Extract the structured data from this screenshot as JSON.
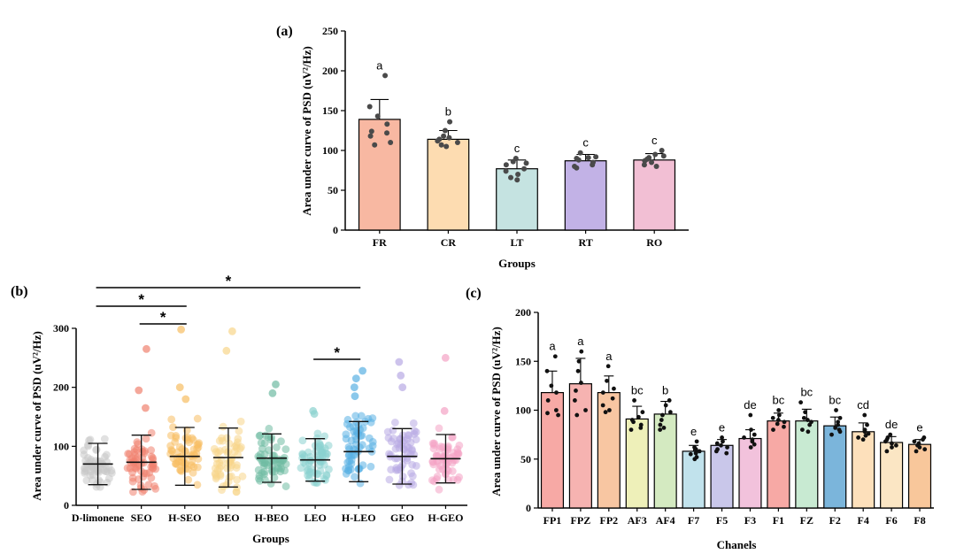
{
  "chart_data": [
    {
      "panel": "(a)",
      "type": "bar",
      "xlabel": "Groups",
      "ylabel": "Area under curve of PSD (uV²/Hz)",
      "ylim": [
        0,
        250
      ],
      "yticks": [
        0,
        50,
        100,
        150,
        200,
        250
      ],
      "categories": [
        "FR",
        "CR",
        "LT",
        "RT",
        "RO"
      ],
      "values": [
        139,
        114,
        77,
        87,
        88
      ],
      "sd": [
        25,
        11,
        11,
        8,
        8
      ],
      "letters": [
        "a",
        "b",
        "c",
        "c",
        "c"
      ],
      "colors": [
        "#f8b8a2",
        "#fddcb1",
        "#c5e3e1",
        "#c2b2e6",
        "#f2bfd4"
      ],
      "points": [
        [
          194,
          155,
          143,
          133,
          124,
          122,
          118,
          110,
          107
        ],
        [
          136,
          125,
          118,
          116,
          114,
          112,
          110,
          107,
          105
        ],
        [
          90,
          86,
          84,
          82,
          77,
          74,
          70,
          66,
          63
        ],
        [
          97,
          92,
          91,
          90,
          88,
          85,
          82,
          80,
          78
        ],
        [
          100,
          95,
          93,
          91,
          89,
          87,
          85,
          82,
          80
        ]
      ]
    },
    {
      "panel": "(b)",
      "type": "scatter",
      "xlabel": "Groups",
      "ylabel": "Area under curve of PSD (uV²/Hz)",
      "ylim": [
        0,
        300
      ],
      "yticks": [
        0,
        100,
        200,
        300
      ],
      "categories": [
        "D-limonene",
        "SEO",
        "H-SEO",
        "BEO",
        "H-BEO",
        "LEO",
        "H-LEO",
        "GEO",
        "H-GEO"
      ],
      "mean": [
        70,
        73,
        83,
        81,
        80,
        77,
        91,
        83,
        79
      ],
      "sd": [
        35,
        46,
        49,
        50,
        41,
        36,
        51,
        47,
        41
      ],
      "max": [
        178,
        265,
        298,
        295,
        205,
        160,
        228,
        243,
        250
      ],
      "outliers": [
        [],
        [
          265,
          195,
          165
        ],
        [
          298,
          200,
          180
        ],
        [
          295,
          262
        ],
        [
          205,
          190
        ],
        [
          160,
          155
        ],
        [
          228,
          215,
          200,
          185
        ],
        [
          243,
          220,
          200
        ],
        [
          250,
          160
        ]
      ],
      "colors": [
        "#c9c9c9",
        "#f0816f",
        "#f7bd62",
        "#f8d58a",
        "#6fbba2",
        "#8ad2cf",
        "#5ab1e3",
        "#b8aae4",
        "#f4a2c5"
      ],
      "significance": [
        {
          "from": 0,
          "to": 6,
          "label": "*"
        },
        {
          "from": 0,
          "to": 2,
          "label": "*"
        },
        {
          "from": 1,
          "to": 2,
          "label": "*"
        },
        {
          "from": 5,
          "to": 6,
          "label": "*"
        }
      ]
    },
    {
      "panel": "(c)",
      "type": "bar",
      "xlabel": "Chanels",
      "ylabel": "Area under curve of PSD (uV²/Hz)",
      "ylim": [
        0,
        200
      ],
      "yticks": [
        0,
        50,
        100,
        150,
        200
      ],
      "categories": [
        "FP1",
        "FPZ",
        "FP2",
        "AF3",
        "AF4",
        "F7",
        "F5",
        "F3",
        "F1",
        "FZ",
        "F2",
        "F4",
        "F6",
        "F8"
      ],
      "values": [
        118,
        127,
        118,
        91,
        96,
        58,
        64,
        71,
        89,
        89,
        84,
        78,
        67,
        65
      ],
      "sd": [
        22,
        26,
        17,
        13,
        13,
        6,
        6,
        9,
        8,
        12,
        9,
        9,
        6,
        5
      ],
      "letters": [
        "a",
        "a",
        "a",
        "bc",
        "b",
        "e",
        "e",
        "de",
        "bc",
        "bc",
        "bc",
        "cd",
        "de",
        "e"
      ],
      "colors": [
        "#f7a9a5",
        "#f6b3b1",
        "#f8c6a2",
        "#eef0b9",
        "#d4eac1",
        "#c1e2ec",
        "#c9c7ea",
        "#f2c2dc",
        "#f7a9a5",
        "#c8ead2",
        "#7bb5db",
        "#fde0bb",
        "#fbe6c4",
        "#f8c79b"
      ],
      "points": [
        [
          155,
          140,
          125,
          118,
          110,
          100,
          97,
          95
        ],
        [
          160,
          150,
          140,
          128,
          120,
          110,
          100,
          95
        ],
        [
          145,
          130,
          122,
          118,
          112,
          105,
          100,
          98
        ],
        [
          110,
          98,
          93,
          90,
          88,
          85,
          82,
          80
        ],
        [
          110,
          105,
          98,
          95,
          90,
          85,
          82,
          80
        ],
        [
          68,
          62,
          60,
          58,
          56,
          55,
          52,
          50
        ],
        [
          72,
          68,
          66,
          64,
          62,
          60,
          58,
          56
        ],
        [
          95,
          80,
          75,
          72,
          70,
          68,
          65,
          62
        ],
        [
          100,
          95,
          92,
          90,
          88,
          86,
          83,
          80
        ],
        [
          108,
          98,
          92,
          90,
          88,
          85,
          80,
          78
        ],
        [
          100,
          92,
          88,
          85,
          82,
          80,
          78,
          75
        ],
        [
          95,
          85,
          80,
          78,
          76,
          74,
          72,
          70
        ],
        [
          75,
          72,
          70,
          68,
          66,
          64,
          62,
          58
        ],
        [
          72,
          70,
          68,
          66,
          64,
          62,
          60,
          58
        ]
      ]
    }
  ]
}
